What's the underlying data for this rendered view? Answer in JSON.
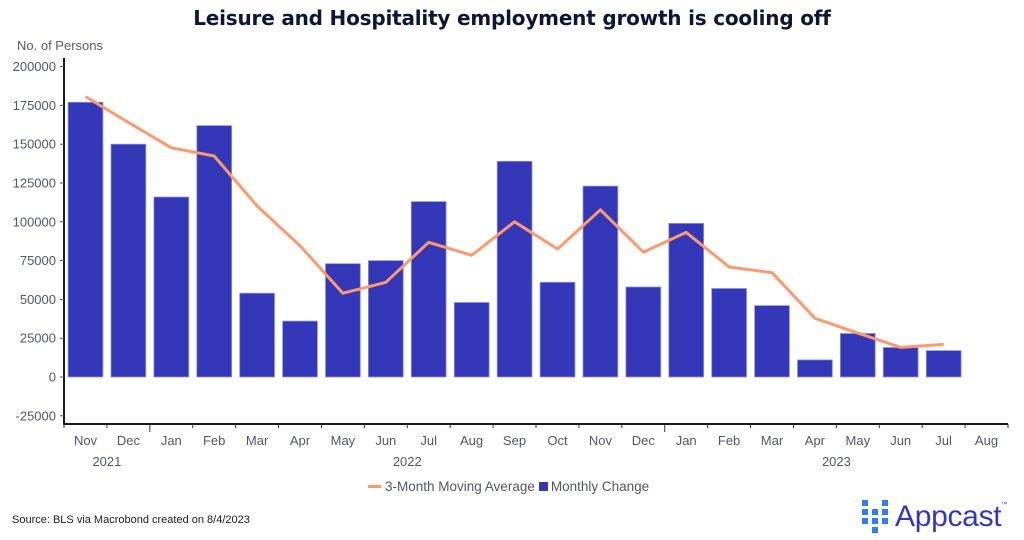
{
  "colors": {
    "bar": "#3337b8",
    "line": "#ff9a70",
    "title": "#0f1535",
    "logo_squares": "#2e7cf6"
  },
  "chart_data": {
    "type": "bar",
    "title": "Leisure and Hospitality employment growth is cooling off",
    "ylabel": "No. of Persons",
    "xlabel": "",
    "ylim": [
      -30000,
      205000
    ],
    "yticks": [
      200000,
      175000,
      150000,
      125000,
      100000,
      75000,
      50000,
      25000,
      0,
      -25000
    ],
    "categories": [
      "Nov",
      "Dec",
      "Jan",
      "Feb",
      "Mar",
      "Apr",
      "May",
      "Jun",
      "Jul",
      "Aug",
      "Sep",
      "Oct",
      "Nov",
      "Dec",
      "Jan",
      "Feb",
      "Mar",
      "Apr",
      "May",
      "Jun",
      "Jul",
      "Aug"
    ],
    "year_labels": [
      {
        "label": "2021",
        "after_index": 0
      },
      {
        "label": "2022",
        "after_index": 7
      },
      {
        "label": "2023",
        "after_index": 17
      }
    ],
    "grid": false,
    "legend_position": "bottom",
    "series": [
      {
        "name": "3-Month Moving Average",
        "type": "line",
        "values": [
          180700,
          164000,
          147700,
          142400,
          110200,
          84500,
          54000,
          61000,
          86800,
          78400,
          100000,
          82500,
          107700,
          80500,
          93200,
          70900,
          67200,
          37800,
          28300,
          19100,
          21000,
          null
        ]
      },
      {
        "name": "Monthly Change",
        "type": "bar",
        "values": [
          177000,
          150000,
          116000,
          162000,
          54000,
          36000,
          73000,
          75000,
          113000,
          48000,
          139000,
          61000,
          123000,
          58000,
          99000,
          57000,
          46000,
          11000,
          28000,
          19000,
          17000,
          null
        ]
      }
    ]
  },
  "legend": {
    "line_label": "3-Month Moving Average",
    "bar_label": "Monthly Change"
  },
  "footer": {
    "source": "Source: BLS via Macrobond created on 8/4/2023",
    "logo_text": "Appcast",
    "logo_tm": "™"
  }
}
